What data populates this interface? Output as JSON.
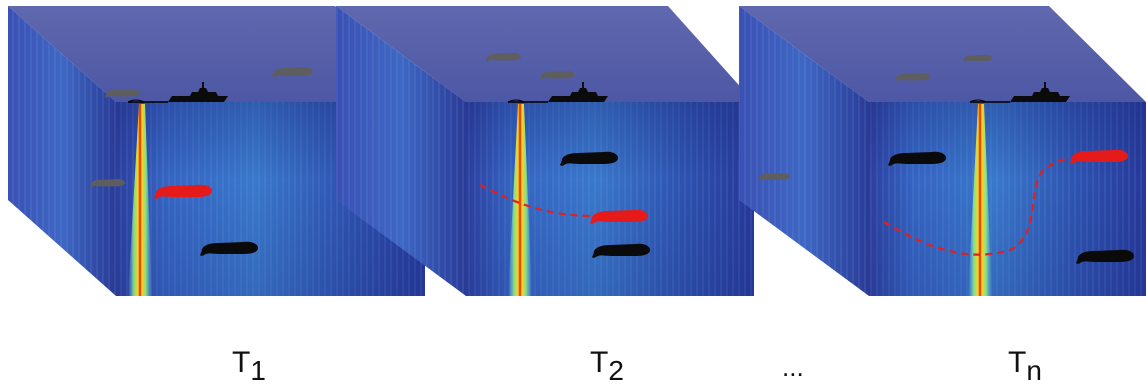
{
  "time_steps": [
    {
      "base": "T",
      "sub": "1"
    },
    {
      "base": "T",
      "sub": "2"
    },
    {
      "base": "T",
      "sub": "n"
    }
  ],
  "ellipsis": "...",
  "colors": {
    "volume_face": "#2e3f9c",
    "volume_top": "#5a64a8",
    "beam_core": "#c41414",
    "beam_mid": "#ffd11a",
    "tracked_animal": "#e51b1b",
    "other_animal": "#0a0a0a",
    "surface_animal": "#6a6a6a",
    "trajectory": "#e02020"
  },
  "icons": [
    "ship-icon",
    "sperm-whale-icon",
    "dashed-trajectory",
    "sonar-beam"
  ]
}
